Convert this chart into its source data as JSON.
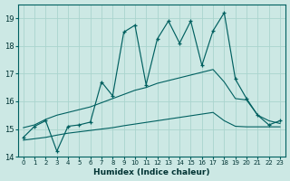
{
  "xlabel": "Humidex (Indice chaleur)",
  "bg_color": "#cce8e4",
  "grid_color": "#aad4ce",
  "line_color": "#006060",
  "xlim": [
    -0.5,
    23.5
  ],
  "ylim": [
    14,
    19.5
  ],
  "yticks": [
    14,
    15,
    16,
    17,
    18,
    19
  ],
  "xticks": [
    0,
    1,
    2,
    3,
    4,
    5,
    6,
    7,
    8,
    9,
    10,
    11,
    12,
    13,
    14,
    15,
    16,
    17,
    18,
    19,
    20,
    21,
    22,
    23
  ],
  "main_y": [
    14.7,
    15.1,
    15.3,
    14.2,
    15.1,
    15.15,
    15.25,
    16.7,
    16.2,
    18.5,
    18.75,
    16.6,
    18.25,
    18.9,
    18.1,
    18.9,
    17.3,
    18.55,
    19.2,
    16.8,
    16.1,
    15.5,
    15.15,
    15.3
  ],
  "upper_y": [
    15.05,
    15.15,
    15.35,
    15.5,
    15.6,
    15.7,
    15.8,
    15.95,
    16.1,
    16.25,
    16.4,
    16.5,
    16.65,
    16.75,
    16.85,
    16.95,
    17.05,
    17.15,
    16.7,
    16.1,
    16.05,
    15.5,
    15.3,
    15.2
  ],
  "lower_y": [
    14.6,
    14.65,
    14.7,
    14.78,
    14.85,
    14.9,
    14.95,
    15.0,
    15.05,
    15.12,
    15.18,
    15.24,
    15.3,
    15.36,
    15.42,
    15.48,
    15.54,
    15.6,
    15.3,
    15.1,
    15.08,
    15.08,
    15.08,
    15.08
  ],
  "marker_indices": [
    0,
    1,
    2,
    3,
    4,
    5,
    6,
    7,
    8,
    9,
    10,
    11,
    12,
    13,
    14,
    15,
    16,
    17,
    18,
    19,
    20,
    21,
    22,
    23
  ],
  "figsize": [
    3.2,
    2.0
  ],
  "dpi": 100
}
